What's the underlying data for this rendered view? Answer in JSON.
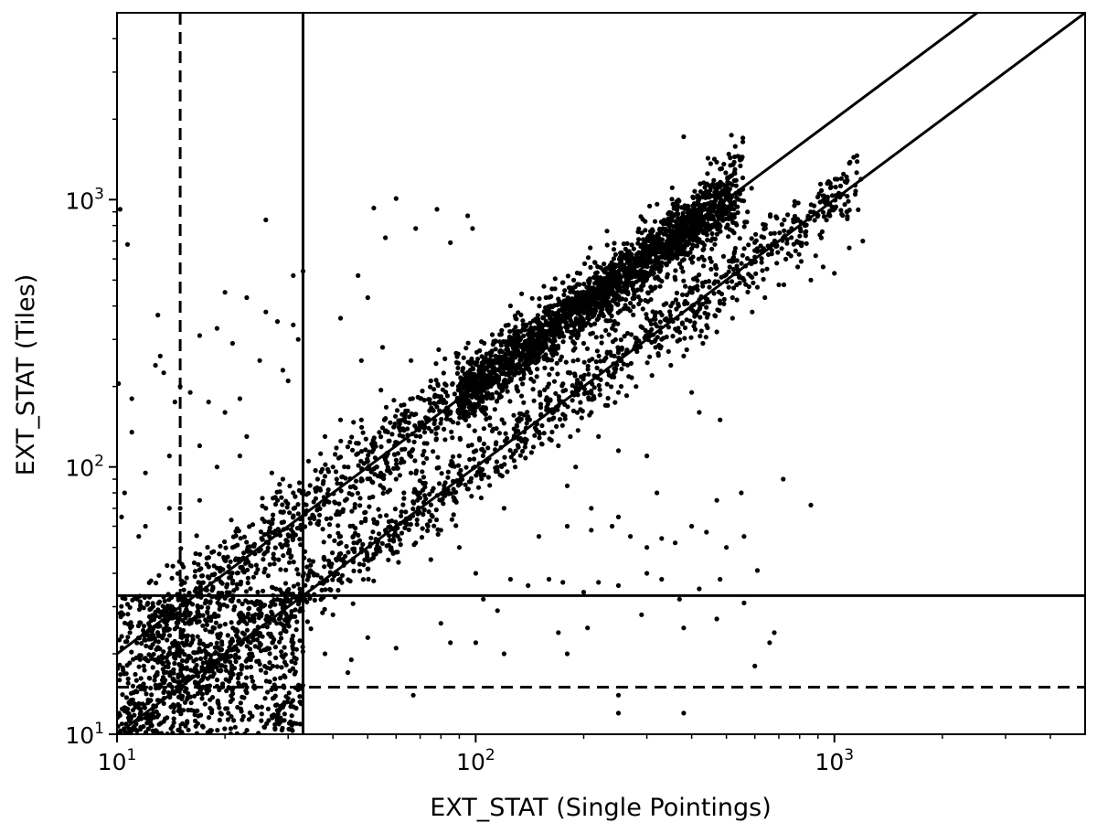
{
  "chart_data": {
    "type": "scatter",
    "xlabel": "EXT_STAT (Single Pointings)",
    "ylabel": "EXT_STAT (Tiles)",
    "xscale": "log",
    "yscale": "log",
    "xlim": [
      10,
      5000
    ],
    "ylim": [
      10,
      5000
    ],
    "grid": false,
    "x_ticks": [
      {
        "value": 10,
        "base": "10",
        "exp": "1"
      },
      {
        "value": 100,
        "base": "10",
        "exp": "2"
      },
      {
        "value": 1000,
        "base": "10",
        "exp": "3"
      }
    ],
    "y_ticks": [
      {
        "value": 10,
        "base": "10",
        "exp": "1"
      },
      {
        "value": 100,
        "base": "10",
        "exp": "2"
      },
      {
        "value": 1000,
        "base": "10",
        "exp": "3"
      }
    ],
    "reference_lines": [
      {
        "kind": "diagonal",
        "relation": "y = x",
        "style": "solid"
      },
      {
        "kind": "diagonal",
        "relation": "y = 2x",
        "style": "solid"
      },
      {
        "kind": "vertical",
        "x": 33,
        "style": "solid"
      },
      {
        "kind": "vertical",
        "x": 15,
        "style": "dashed"
      },
      {
        "kind": "horizontal",
        "y": 33,
        "style": "solid"
      },
      {
        "kind": "horizontal",
        "y": 15,
        "style": "dashed"
      }
    ],
    "point_color": "#000000",
    "series": [
      {
        "points": [
          [
            10.2,
            920
          ],
          [
            10.7,
            680
          ],
          [
            26,
            840
          ],
          [
            60,
            1010
          ],
          [
            52,
            930
          ],
          [
            56,
            720
          ],
          [
            78,
            920
          ],
          [
            95,
            870
          ],
          [
            47,
            520
          ],
          [
            50,
            430
          ],
          [
            68,
            780
          ],
          [
            85,
            690
          ],
          [
            98,
            780
          ],
          [
            33,
            540
          ],
          [
            31,
            520
          ],
          [
            20,
            450
          ],
          [
            23,
            430
          ],
          [
            26,
            380
          ],
          [
            28,
            350
          ],
          [
            31,
            340
          ],
          [
            32,
            300
          ],
          [
            19,
            330
          ],
          [
            21,
            290
          ],
          [
            17,
            310
          ],
          [
            13,
            370
          ],
          [
            13.2,
            260
          ],
          [
            12.8,
            240
          ],
          [
            13.5,
            225
          ],
          [
            10.1,
            205
          ],
          [
            11,
            180
          ],
          [
            14.5,
            175
          ],
          [
            15,
            200
          ],
          [
            16,
            190
          ],
          [
            18,
            175
          ],
          [
            22,
            180
          ],
          [
            20,
            160
          ],
          [
            25,
            250
          ],
          [
            29,
            230
          ],
          [
            30,
            210
          ],
          [
            11,
            135
          ],
          [
            10.5,
            80
          ],
          [
            12,
            95
          ],
          [
            14,
            110
          ],
          [
            17,
            120
          ],
          [
            19,
            100
          ],
          [
            22,
            110
          ],
          [
            23,
            130
          ],
          [
            27,
            95
          ],
          [
            29,
            90
          ],
          [
            31,
            80
          ],
          [
            28,
            75
          ],
          [
            26,
            70
          ],
          [
            12,
            60
          ],
          [
            14,
            70
          ],
          [
            10.3,
            65
          ],
          [
            11.5,
            55
          ],
          [
            15,
            70
          ],
          [
            17,
            75
          ],
          [
            21,
            50
          ],
          [
            23,
            45
          ],
          [
            48,
            250
          ],
          [
            42,
            360
          ],
          [
            55,
            280
          ],
          [
            66,
            250
          ],
          [
            75,
            210
          ],
          [
            90,
            170
          ],
          [
            38,
            130
          ],
          [
            42,
            150
          ],
          [
            48,
            150
          ],
          [
            55,
            140
          ],
          [
            62,
            170
          ],
          [
            70,
            130
          ],
          [
            85,
            150
          ],
          [
            40,
            100
          ],
          [
            50,
            105
          ],
          [
            60,
            90
          ],
          [
            70,
            80
          ],
          [
            80,
            75
          ],
          [
            90,
            110
          ],
          [
            130,
            200
          ],
          [
            140,
            260
          ],
          [
            160,
            150
          ],
          [
            170,
            120
          ],
          [
            190,
            100
          ],
          [
            220,
            130
          ],
          [
            250,
            115
          ],
          [
            300,
            110
          ],
          [
            400,
            190
          ],
          [
            420,
            160
          ],
          [
            480,
            150
          ],
          [
            180,
            85
          ],
          [
            210,
            70
          ],
          [
            250,
            65
          ],
          [
            320,
            80
          ],
          [
            470,
            75
          ],
          [
            550,
            80
          ],
          [
            720,
            90
          ],
          [
            120,
            70
          ],
          [
            150,
            55
          ],
          [
            180,
            60
          ],
          [
            210,
            58
          ],
          [
            240,
            60
          ],
          [
            270,
            55
          ],
          [
            300,
            50
          ],
          [
            330,
            54
          ],
          [
            360,
            52
          ],
          [
            400,
            60
          ],
          [
            440,
            57
          ],
          [
            500,
            50
          ],
          [
            100,
            40
          ],
          [
            105,
            32
          ],
          [
            115,
            29
          ],
          [
            125,
            38
          ],
          [
            140,
            36
          ],
          [
            160,
            38
          ],
          [
            175,
            37
          ],
          [
            200,
            34
          ],
          [
            220,
            37
          ],
          [
            250,
            36
          ],
          [
            300,
            40
          ],
          [
            330,
            38
          ],
          [
            370,
            32
          ],
          [
            420,
            35
          ],
          [
            480,
            38
          ],
          [
            560,
            31
          ],
          [
            610,
            41
          ],
          [
            56,
            58
          ],
          [
            48,
            62
          ],
          [
            42,
            55
          ],
          [
            60,
            48
          ],
          [
            68,
            52
          ],
          [
            75,
            45
          ],
          [
            80,
            58
          ],
          [
            90,
            50
          ],
          [
            170,
            24
          ],
          [
            205,
            25
          ],
          [
            290,
            28
          ],
          [
            380,
            25
          ],
          [
            470,
            27
          ],
          [
            680,
            24
          ],
          [
            660,
            22
          ],
          [
            250,
            14
          ],
          [
            250,
            12
          ],
          [
            380,
            12
          ],
          [
            600,
            18
          ],
          [
            180,
            20
          ],
          [
            67,
            14
          ],
          [
            44,
            17
          ],
          [
            45,
            19
          ],
          [
            50,
            23
          ],
          [
            60,
            21
          ],
          [
            80,
            26
          ],
          [
            38,
            20
          ],
          [
            40,
            28
          ],
          [
            85,
            22
          ],
          [
            100,
            22
          ],
          [
            120,
            20
          ],
          [
            440,
            1050
          ],
          [
            860,
            72
          ],
          [
            560,
            55
          ],
          [
            1200,
            700
          ],
          [
            1100,
            660
          ],
          [
            1000,
            530
          ],
          [
            930,
            560
          ],
          [
            860,
            500
          ],
          [
            790,
            560
          ],
          [
            700,
            480
          ],
          [
            640,
            430
          ],
          [
            590,
            380
          ],
          [
            520,
            360
          ],
          [
            470,
            320
          ],
          [
            430,
            290
          ],
          [
            380,
            260
          ],
          [
            350,
            240
          ],
          [
            310,
            220
          ],
          [
            280,
            200
          ],
          [
            250,
            190
          ],
          [
            230,
            170
          ],
          [
            210,
            160
          ],
          [
            380,
            1720
          ],
          [
            600,
            610
          ],
          [
            400,
            450
          ],
          [
            350,
            400
          ],
          [
            300,
            360
          ],
          [
            330,
            300
          ],
          [
            270,
            410
          ],
          [
            240,
            330
          ],
          [
            220,
            360
          ],
          [
            200,
            290
          ],
          [
            180,
            330
          ],
          [
            160,
            300
          ]
        ],
        "clusters": [
          {
            "relation": "y = x",
            "x_range": [
              10,
              1150
            ],
            "count": 1300,
            "scatter": 0.09
          },
          {
            "relation": "y = 2x",
            "x_range": [
              12,
              560
            ],
            "count": 1500,
            "scatter": 0.12
          },
          {
            "relation": "y = 2x",
            "x_range": [
              90,
              520
            ],
            "count": 1600,
            "scatter": 0.07
          },
          {
            "relation": "field",
            "x_range": [
              10,
              33
            ],
            "y_range": [
              10,
              33
            ],
            "count": 700
          }
        ]
      }
    ]
  }
}
